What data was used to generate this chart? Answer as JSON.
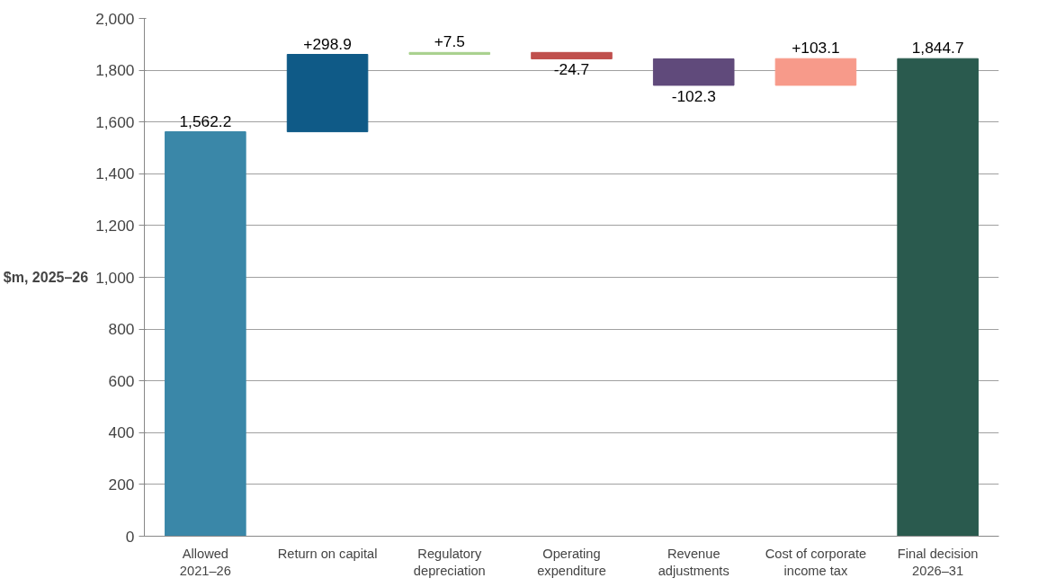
{
  "chart_data": {
    "type": "bar",
    "ylabel": "$m, 2025–26",
    "categories": [
      "Allowed\n2021–26",
      "Return on capital",
      "Regulatory\ndepreciation",
      "Operating\nexpenditure",
      "Revenue\nadjustments",
      "Cost of corporate\nincome tax",
      "Final decision\n2026–31"
    ],
    "values": [
      1562.2,
      298.9,
      7.5,
      -24.7,
      -102.3,
      103.1,
      1844.7
    ],
    "base": [
      0,
      1562.2,
      1861.1,
      1868.6,
      1843.9,
      1741.6,
      0
    ],
    "colors": [
      "#3a87a8",
      "#0f5a87",
      "#a9d18e",
      "#c0504d",
      "#604a7b",
      "#f79a8a",
      "#2a5a4e"
    ],
    "value_labels": [
      "1,562.2",
      "+298.9",
      "+7.5",
      "-24.7",
      "-102.3",
      "+103.1",
      "1,844.7"
    ],
    "ylim": [
      0,
      2000
    ],
    "yticks": [
      0,
      200,
      400,
      600,
      800,
      {
        "value": 1000,
        "label": "1,000"
      },
      {
        "value": 1200,
        "label": "1,200"
      },
      {
        "value": 1400,
        "label": "1,400"
      },
      {
        "value": 1600,
        "label": "1,600"
      },
      {
        "value": 1800,
        "label": "1,800"
      },
      {
        "value": 2000,
        "label": "2,000"
      }
    ],
    "grid": "y"
  }
}
